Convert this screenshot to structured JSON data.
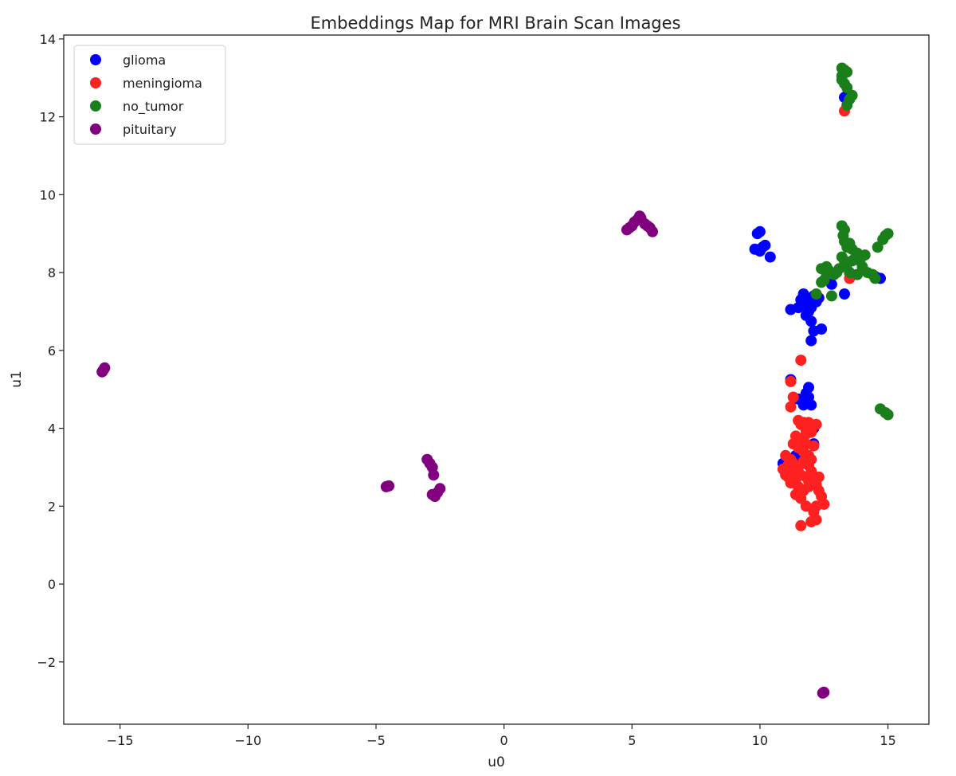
{
  "chart_data": {
    "type": "scatter",
    "title": "Embeddings Map for MRI Brain Scan Images",
    "xlabel": "u0",
    "ylabel": "u1",
    "xlim": [
      -17.2,
      16.6
    ],
    "ylim": [
      -3.6,
      14.1
    ],
    "xticks": [
      -15,
      -10,
      -5,
      0,
      5,
      10,
      15
    ],
    "yticks": [
      -2,
      0,
      2,
      4,
      6,
      8,
      10,
      12,
      14
    ],
    "xtick_labels": [
      "−15",
      "−10",
      "−5",
      "0",
      "5",
      "10",
      "15"
    ],
    "ytick_labels": [
      "−2",
      "0",
      "2",
      "4",
      "6",
      "8",
      "10",
      "12",
      "14"
    ],
    "grid": false,
    "legend_position": "top-left",
    "series": [
      {
        "name": "glioma",
        "color": "#0000ff",
        "points": [
          [
            9.8,
            8.6
          ],
          [
            9.9,
            9.0
          ],
          [
            10.0,
            9.05
          ],
          [
            10.0,
            8.55
          ],
          [
            10.2,
            8.7
          ],
          [
            10.4,
            8.4
          ],
          [
            10.1,
            8.65
          ],
          [
            11.2,
            7.05
          ],
          [
            11.5,
            7.1
          ],
          [
            11.6,
            7.3
          ],
          [
            11.7,
            7.45
          ],
          [
            11.8,
            7.2
          ],
          [
            11.9,
            7.0
          ],
          [
            12.0,
            7.1
          ],
          [
            12.1,
            7.4
          ],
          [
            12.2,
            7.25
          ],
          [
            11.8,
            6.9
          ],
          [
            12.0,
            6.75
          ],
          [
            12.1,
            6.5
          ],
          [
            12.0,
            6.25
          ],
          [
            12.4,
            6.55
          ],
          [
            11.9,
            7.3
          ],
          [
            12.3,
            7.35
          ],
          [
            13.3,
            7.45
          ],
          [
            14.7,
            7.85
          ],
          [
            14.5,
            7.9
          ],
          [
            13.8,
            7.95
          ],
          [
            13.5,
            8.0
          ],
          [
            12.8,
            7.7
          ],
          [
            13.3,
            12.5
          ],
          [
            13.4,
            12.55
          ],
          [
            11.2,
            5.25
          ],
          [
            11.8,
            4.9
          ],
          [
            11.9,
            5.05
          ],
          [
            11.7,
            4.6
          ],
          [
            12.0,
            4.6
          ],
          [
            11.5,
            4.75
          ],
          [
            11.9,
            4.8
          ],
          [
            10.9,
            3.1
          ],
          [
            11.1,
            3.2
          ],
          [
            11.0,
            2.9
          ],
          [
            11.2,
            3.0
          ],
          [
            12.1,
            3.6
          ],
          [
            12.1,
            4.0
          ],
          [
            11.4,
            3.3
          ],
          [
            11.6,
            3.1
          ]
        ]
      },
      {
        "name": "meningioma",
        "color": "#ff2020",
        "points": [
          [
            11.2,
            4.55
          ],
          [
            11.3,
            4.8
          ],
          [
            11.2,
            5.2
          ],
          [
            11.6,
            5.75
          ],
          [
            11.5,
            4.2
          ],
          [
            11.6,
            4.1
          ],
          [
            11.7,
            4.15
          ],
          [
            11.9,
            4.15
          ],
          [
            12.2,
            4.1
          ],
          [
            12.0,
            3.9
          ],
          [
            11.8,
            3.95
          ],
          [
            11.4,
            3.8
          ],
          [
            11.6,
            3.7
          ],
          [
            11.8,
            3.6
          ],
          [
            12.1,
            3.55
          ],
          [
            11.7,
            3.4
          ],
          [
            11.9,
            3.3
          ],
          [
            11.5,
            3.5
          ],
          [
            11.3,
            3.6
          ],
          [
            11.0,
            3.3
          ],
          [
            11.2,
            3.2
          ],
          [
            11.1,
            3.05
          ],
          [
            11.3,
            2.95
          ],
          [
            11.5,
            3.0
          ],
          [
            11.7,
            3.15
          ],
          [
            11.9,
            3.05
          ],
          [
            12.0,
            2.9
          ],
          [
            12.1,
            2.7
          ],
          [
            11.8,
            2.75
          ],
          [
            11.6,
            2.8
          ],
          [
            11.4,
            2.7
          ],
          [
            11.2,
            2.6
          ],
          [
            11.0,
            2.8
          ],
          [
            10.9,
            2.95
          ],
          [
            11.1,
            2.75
          ],
          [
            11.5,
            2.5
          ],
          [
            11.7,
            2.4
          ],
          [
            11.9,
            2.5
          ],
          [
            12.2,
            2.55
          ],
          [
            12.3,
            2.4
          ],
          [
            12.4,
            2.25
          ],
          [
            12.5,
            2.05
          ],
          [
            12.2,
            2.0
          ],
          [
            12.1,
            1.85
          ],
          [
            11.8,
            2.0
          ],
          [
            11.6,
            2.2
          ],
          [
            11.4,
            2.3
          ],
          [
            12.0,
            1.6
          ],
          [
            12.2,
            1.65
          ],
          [
            11.6,
            1.5
          ],
          [
            11.9,
            2.65
          ],
          [
            12.3,
            2.75
          ],
          [
            12.0,
            3.2
          ],
          [
            11.3,
            3.1
          ],
          [
            11.8,
            3.85
          ],
          [
            13.3,
            12.15
          ],
          [
            13.5,
            7.85
          ]
        ]
      },
      {
        "name": "no_tumor",
        "color": "#1a7f1a",
        "points": [
          [
            13.2,
            13.25
          ],
          [
            13.3,
            13.2
          ],
          [
            13.2,
            13.05
          ],
          [
            13.4,
            13.15
          ],
          [
            13.2,
            12.95
          ],
          [
            13.3,
            12.85
          ],
          [
            13.4,
            12.75
          ],
          [
            13.6,
            12.55
          ],
          [
            13.5,
            12.45
          ],
          [
            13.4,
            12.3
          ],
          [
            13.2,
            9.2
          ],
          [
            13.3,
            9.1
          ],
          [
            13.25,
            8.95
          ],
          [
            13.3,
            8.8
          ],
          [
            13.4,
            8.65
          ],
          [
            13.5,
            8.75
          ],
          [
            13.6,
            8.6
          ],
          [
            13.8,
            8.5
          ],
          [
            13.7,
            8.35
          ],
          [
            13.9,
            8.3
          ],
          [
            14.0,
            8.15
          ],
          [
            14.1,
            8.45
          ],
          [
            13.2,
            8.4
          ],
          [
            13.3,
            8.3
          ],
          [
            13.4,
            8.2
          ],
          [
            13.1,
            8.1
          ],
          [
            13.0,
            8.0
          ],
          [
            12.9,
            7.95
          ],
          [
            12.7,
            8.05
          ],
          [
            12.6,
            7.95
          ],
          [
            12.5,
            7.8
          ],
          [
            12.4,
            7.75
          ],
          [
            12.4,
            8.1
          ],
          [
            12.6,
            8.15
          ],
          [
            13.5,
            8.0
          ],
          [
            13.8,
            7.95
          ],
          [
            14.2,
            8.0
          ],
          [
            14.4,
            7.95
          ],
          [
            14.5,
            7.85
          ],
          [
            13.6,
            8.3
          ],
          [
            14.6,
            8.65
          ],
          [
            14.8,
            8.85
          ],
          [
            14.9,
            8.95
          ],
          [
            15.0,
            9.0
          ],
          [
            12.8,
            7.4
          ],
          [
            12.2,
            7.45
          ],
          [
            14.7,
            4.5
          ],
          [
            14.9,
            4.4
          ],
          [
            15.0,
            4.35
          ]
        ]
      },
      {
        "name": "pituitary",
        "color": "#800080",
        "points": [
          [
            -15.7,
            5.45
          ],
          [
            -15.6,
            5.55
          ],
          [
            -15.65,
            5.5
          ],
          [
            -4.6,
            2.5
          ],
          [
            -4.5,
            2.52
          ],
          [
            -3.0,
            3.2
          ],
          [
            -2.9,
            3.1
          ],
          [
            -2.8,
            3.0
          ],
          [
            -2.75,
            2.8
          ],
          [
            -2.8,
            2.3
          ],
          [
            -2.7,
            2.25
          ],
          [
            -2.6,
            2.35
          ],
          [
            -2.5,
            2.45
          ],
          [
            4.8,
            9.1
          ],
          [
            4.9,
            9.15
          ],
          [
            5.0,
            9.2
          ],
          [
            5.1,
            9.3
          ],
          [
            5.2,
            9.35
          ],
          [
            5.3,
            9.45
          ],
          [
            5.35,
            9.4
          ],
          [
            5.5,
            9.25
          ],
          [
            5.6,
            9.2
          ],
          [
            5.7,
            9.15
          ],
          [
            5.8,
            9.05
          ],
          [
            12.45,
            -2.8
          ],
          [
            12.5,
            -2.78
          ]
        ]
      }
    ]
  }
}
